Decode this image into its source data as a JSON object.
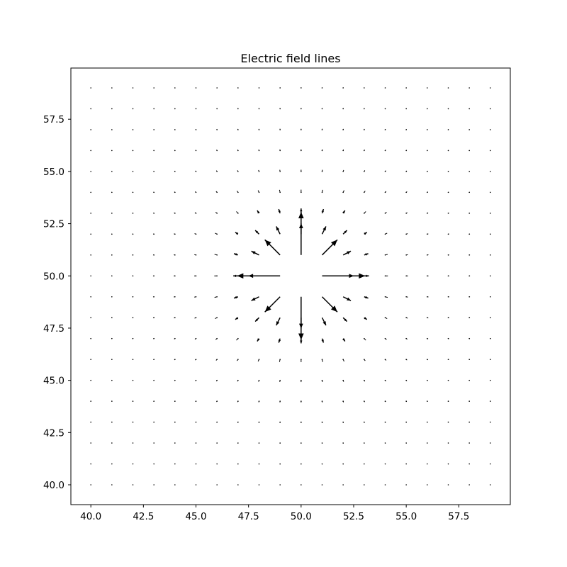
{
  "chart_data": {
    "type": "quiver",
    "title": "Electric field lines",
    "xlabel": "",
    "ylabel": "",
    "xlim": [
      39.05,
      99.95
    ],
    "ylim": [
      39.05,
      59.95
    ],
    "x_ticks": [
      40.0,
      42.5,
      45.0,
      47.5,
      50.0,
      52.5,
      55.0,
      57.5
    ],
    "y_ticks": [
      40.0,
      42.5,
      45.0,
      47.5,
      50.0,
      52.5,
      55.0,
      57.5
    ],
    "x_tick_labels": [
      "40.0",
      "42.5",
      "45.0",
      "47.5",
      "50.0",
      "52.5",
      "55.0",
      "57.5"
    ],
    "y_tick_labels": [
      "40.0",
      "42.5",
      "45.0",
      "47.5",
      "50.0",
      "52.5",
      "55.0",
      "57.5"
    ],
    "grid": false,
    "field": {
      "kind": "point_charge",
      "charge_position": [
        50,
        50
      ],
      "grid_x_range": [
        40,
        59
      ],
      "grid_y_range": [
        40,
        59
      ],
      "grid_step": 1,
      "vector_form": "unit_vector / r^2"
    },
    "arrow_color": "#000000"
  }
}
